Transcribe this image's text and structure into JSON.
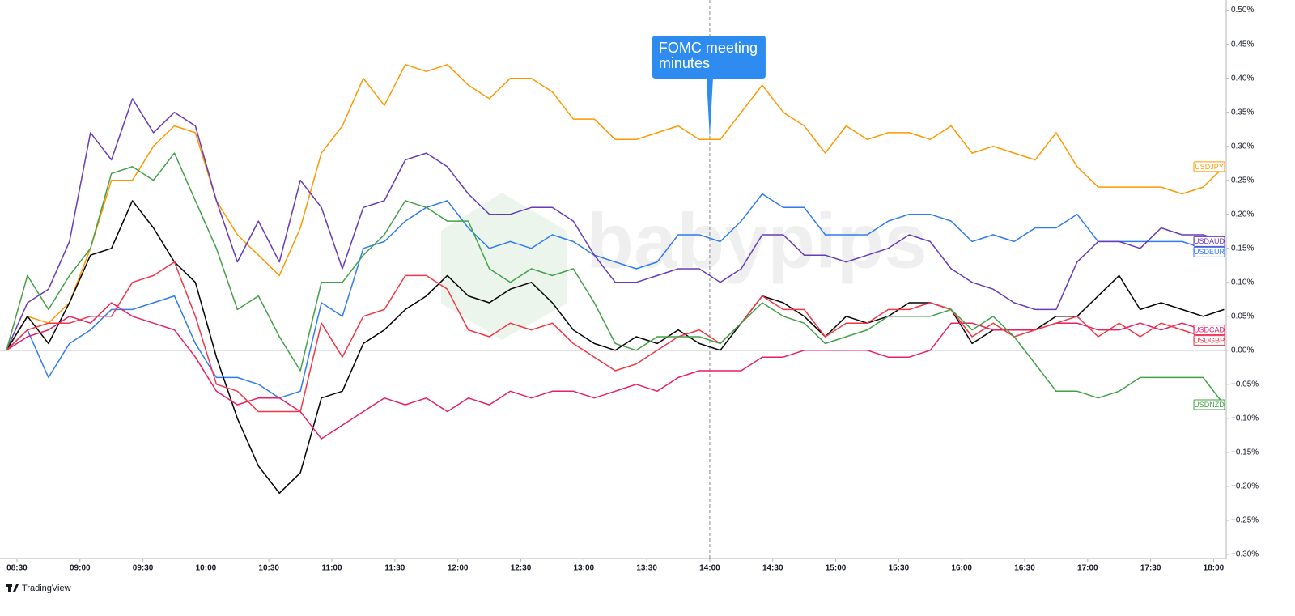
{
  "chart_data": {
    "type": "line",
    "x": [
      505,
      515,
      525,
      535,
      545,
      555,
      565,
      575,
      585,
      595,
      605,
      615,
      625,
      635,
      645,
      655,
      665,
      675,
      685,
      695,
      705,
      715,
      725,
      735,
      745,
      755,
      765,
      775,
      785,
      795,
      805,
      815,
      825,
      835,
      845,
      855,
      865,
      875,
      885,
      895,
      905,
      915,
      925,
      935,
      945,
      955,
      965,
      975,
      985,
      995,
      1005,
      1015,
      1025,
      1035,
      1045,
      1055,
      1065,
      1075,
      1085
    ],
    "xlim": [
      505,
      1086
    ],
    "xticks": [
      {
        "value": 510,
        "label": "08:30"
      },
      {
        "value": 540,
        "label": "09:00"
      },
      {
        "value": 570,
        "label": "09:30"
      },
      {
        "value": 600,
        "label": "10:00"
      },
      {
        "value": 630,
        "label": "10:30"
      },
      {
        "value": 660,
        "label": "11:00"
      },
      {
        "value": 690,
        "label": "11:30"
      },
      {
        "value": 720,
        "label": "12:00"
      },
      {
        "value": 750,
        "label": "12:30"
      },
      {
        "value": 780,
        "label": "13:00"
      },
      {
        "value": 810,
        "label": "13:30"
      },
      {
        "value": 840,
        "label": "14:00"
      },
      {
        "value": 870,
        "label": "14:30"
      },
      {
        "value": 900,
        "label": "15:00"
      },
      {
        "value": 930,
        "label": "15:30"
      },
      {
        "value": 960,
        "label": "16:00"
      },
      {
        "value": 990,
        "label": "16:30"
      },
      {
        "value": 1020,
        "label": "17:00"
      },
      {
        "value": 1050,
        "label": "17:30"
      },
      {
        "value": 1080,
        "label": "18:00"
      }
    ],
    "ylim": [
      -0.306,
      0.515
    ],
    "yticks": [
      {
        "value": 0.5,
        "label": "0.50%"
      },
      {
        "value": 0.45,
        "label": "0.45%"
      },
      {
        "value": 0.4,
        "label": "0.40%"
      },
      {
        "value": 0.35,
        "label": "0.35%"
      },
      {
        "value": 0.3,
        "label": "0.30%"
      },
      {
        "value": 0.25,
        "label": "0.25%"
      },
      {
        "value": 0.2,
        "label": "0.20%"
      },
      {
        "value": 0.15,
        "label": "0.15%"
      },
      {
        "value": 0.1,
        "label": "0.10%"
      },
      {
        "value": 0.05,
        "label": "0.05%"
      },
      {
        "value": 0,
        "label": "0.00%"
      },
      {
        "value": -0.05,
        "label": "−0.05%"
      },
      {
        "value": -0.1,
        "label": "−0.10%"
      },
      {
        "value": -0.15,
        "label": "−0.15%"
      },
      {
        "value": -0.2,
        "label": "−0.20%"
      },
      {
        "value": -0.25,
        "label": "−0.25%"
      },
      {
        "value": -0.3,
        "label": "−0.30%"
      }
    ],
    "grid": false,
    "series": [
      {
        "name": "USDJPY",
        "color": "#ff9800",
        "values": [
          0,
          0.05,
          0.04,
          0.07,
          0.15,
          0.25,
          0.25,
          0.3,
          0.33,
          0.32,
          0.22,
          0.17,
          0.14,
          0.11,
          0.18,
          0.29,
          0.33,
          0.4,
          0.36,
          0.42,
          0.41,
          0.42,
          0.39,
          0.37,
          0.4,
          0.4,
          0.38,
          0.34,
          0.34,
          0.31,
          0.31,
          0.32,
          0.33,
          0.31,
          0.31,
          0.35,
          0.39,
          0.35,
          0.33,
          0.29,
          0.33,
          0.31,
          0.32,
          0.32,
          0.31,
          0.33,
          0.29,
          0.3,
          0.29,
          0.28,
          0.32,
          0.27,
          0.24,
          0.24,
          0.24,
          0.24,
          0.23,
          0.24,
          0.27
        ]
      },
      {
        "name": "USDEUR",
        "color": "#2f7bf0",
        "values": [
          0,
          0.03,
          -0.04,
          0.01,
          0.03,
          0.06,
          0.06,
          0.07,
          0.08,
          0.01,
          -0.04,
          -0.04,
          -0.05,
          -0.07,
          -0.06,
          0.07,
          0.05,
          0.15,
          0.16,
          0.19,
          0.21,
          0.22,
          0.18,
          0.15,
          0.16,
          0.15,
          0.17,
          0.16,
          0.14,
          0.13,
          0.12,
          0.13,
          0.17,
          0.17,
          0.16,
          0.19,
          0.23,
          0.21,
          0.21,
          0.17,
          0.17,
          0.17,
          0.19,
          0.2,
          0.2,
          0.19,
          0.16,
          0.17,
          0.16,
          0.18,
          0.18,
          0.2,
          0.16,
          0.16,
          0.16,
          0.16,
          0.16,
          0.15,
          0.15
        ]
      },
      {
        "name": "USDAUD",
        "color": "#673ab7",
        "values": [
          0,
          0.07,
          0.09,
          0.16,
          0.32,
          0.28,
          0.37,
          0.32,
          0.35,
          0.33,
          0.22,
          0.13,
          0.19,
          0.13,
          0.25,
          0.21,
          0.12,
          0.21,
          0.22,
          0.28,
          0.29,
          0.27,
          0.23,
          0.2,
          0.2,
          0.21,
          0.21,
          0.19,
          0.14,
          0.1,
          0.1,
          0.11,
          0.12,
          0.12,
          0.1,
          0.12,
          0.17,
          0.17,
          0.14,
          0.14,
          0.13,
          0.14,
          0.15,
          0.17,
          0.16,
          0.12,
          0.1,
          0.09,
          0.07,
          0.06,
          0.06,
          0.13,
          0.16,
          0.16,
          0.15,
          0.18,
          0.17,
          0.17,
          0.16
        ]
      },
      {
        "color": "#000000",
        "values": [
          0,
          0.05,
          0.01,
          0.07,
          0.14,
          0.15,
          0.22,
          0.18,
          0.13,
          0.1,
          -0.01,
          -0.1,
          -0.17,
          -0.21,
          -0.18,
          -0.07,
          -0.06,
          0.01,
          0.03,
          0.06,
          0.08,
          0.11,
          0.08,
          0.07,
          0.09,
          0.1,
          0.07,
          0.03,
          0.01,
          0.0,
          0.02,
          0.01,
          0.03,
          0.01,
          0.0,
          0.04,
          0.08,
          0.07,
          0.05,
          0.02,
          0.05,
          0.04,
          0.05,
          0.07,
          0.07,
          0.06,
          0.01,
          0.03,
          0.03,
          0.03,
          0.05,
          0.05,
          0.08,
          0.11,
          0.06,
          0.07,
          0.06,
          0.05,
          0.06
        ]
      },
      {
        "name": "USDCAD",
        "color": "#e91e63",
        "values": [
          0,
          0.02,
          0.03,
          0.05,
          0.04,
          0.07,
          0.05,
          0.04,
          0.03,
          -0.01,
          -0.06,
          -0.08,
          -0.07,
          -0.07,
          -0.09,
          -0.13,
          -0.11,
          -0.09,
          -0.07,
          -0.08,
          -0.07,
          -0.09,
          -0.07,
          -0.08,
          -0.06,
          -0.07,
          -0.06,
          -0.06,
          -0.07,
          -0.06,
          -0.05,
          -0.06,
          -0.04,
          -0.03,
          -0.03,
          -0.03,
          -0.01,
          -0.01,
          0.0,
          0.0,
          0.0,
          0.0,
          -0.01,
          -0.01,
          0.0,
          0.04,
          0.04,
          0.03,
          0.03,
          0.03,
          0.04,
          0.04,
          0.03,
          0.03,
          0.04,
          0.03,
          0.04,
          0.03,
          0.03
        ]
      },
      {
        "name": "USDGBP",
        "color": "#f23645",
        "values": [
          0,
          0.03,
          0.04,
          0.04,
          0.05,
          0.05,
          0.1,
          0.11,
          0.13,
          0.05,
          -0.05,
          -0.06,
          -0.09,
          -0.09,
          -0.09,
          0.04,
          -0.01,
          0.05,
          0.06,
          0.11,
          0.11,
          0.09,
          0.03,
          0.02,
          0.04,
          0.03,
          0.04,
          0.01,
          -0.01,
          -0.03,
          -0.02,
          0.0,
          0.02,
          0.03,
          0.01,
          0.04,
          0.08,
          0.06,
          0.06,
          0.02,
          0.04,
          0.04,
          0.06,
          0.06,
          0.07,
          0.06,
          0.02,
          0.04,
          0.02,
          0.03,
          0.04,
          0.05,
          0.02,
          0.04,
          0.02,
          0.04,
          0.03,
          0.02,
          0.02
        ]
      },
      {
        "name": "USDNZD",
        "color": "#43a047",
        "values": [
          0,
          0.11,
          0.06,
          0.11,
          0.15,
          0.26,
          0.27,
          0.25,
          0.29,
          0.22,
          0.15,
          0.06,
          0.08,
          0.02,
          -0.03,
          0.1,
          0.1,
          0.14,
          0.17,
          0.22,
          0.21,
          0.19,
          0.19,
          0.12,
          0.1,
          0.12,
          0.11,
          0.12,
          0.07,
          0.01,
          0.0,
          0.02,
          0.02,
          0.02,
          0.01,
          0.04,
          0.07,
          0.05,
          0.04,
          0.01,
          0.02,
          0.03,
          0.05,
          0.05,
          0.05,
          0.06,
          0.03,
          0.05,
          0.02,
          -0.02,
          -0.06,
          -0.06,
          -0.07,
          -0.06,
          -0.04,
          -0.04,
          -0.04,
          -0.04,
          -0.08
        ]
      }
    ],
    "annotation": {
      "lines": [
        "FOMC meeting",
        "minutes"
      ],
      "x": 840
    },
    "watermark": "babypips",
    "footer": "TradingView"
  }
}
